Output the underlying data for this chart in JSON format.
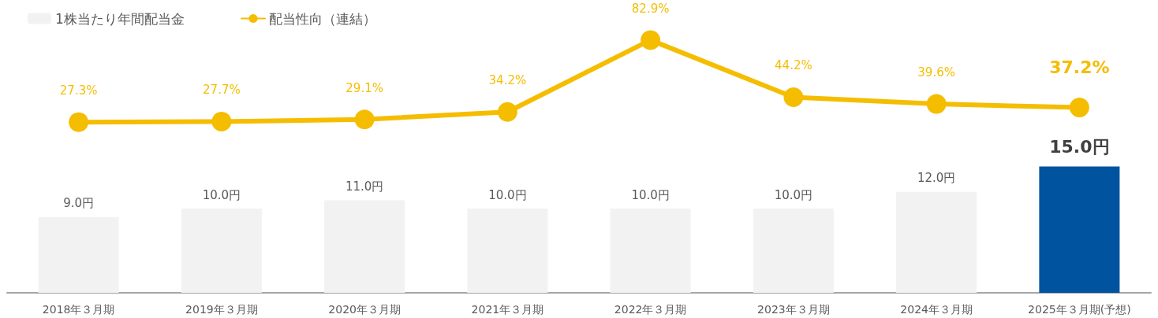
{
  "chart_data": [
    {
      "type": "bar",
      "categories": [
        "2018年３月期",
        "2019年３月期",
        "2020年３月期",
        "2021年３月期",
        "2022年３月期",
        "2023年３月期",
        "2024年３月期",
        "2025年３月期(予想)"
      ],
      "series": [
        {
          "name": "1株当たり年間配当金",
          "color": "#f2f2f2",
          "colors": [
            "#f2f2f2",
            "#f2f2f2",
            "#f2f2f2",
            "#f2f2f2",
            "#f2f2f2",
            "#f2f2f2",
            "#f2f2f2",
            "#00539f"
          ],
          "values": [
            9.0,
            10.0,
            11.0,
            10.0,
            10.0,
            10.0,
            12.0,
            15.0
          ],
          "value_labels": [
            "9.0円",
            "10.0円",
            "11.0円",
            "10.0円",
            "10.0円",
            "10.0円",
            "12.0円",
            "15.0円"
          ]
        }
      ],
      "legend": "top left",
      "grid": false
    },
    {
      "type": "line",
      "categories": [
        null,
        null,
        null,
        null,
        null,
        null,
        null,
        null
      ],
      "series": [
        {
          "name": "配当性向（連結）",
          "color": "#f5bd00",
          "values": [
            27.3,
            27.7,
            29.1,
            34.2,
            82.9,
            44.2,
            39.6,
            37.2
          ],
          "value_labels": [
            "27.3%",
            "27.7%",
            "29.1%",
            "34.2%",
            "82.9%",
            "44.2%",
            "39.6%",
            "37.2%"
          ]
        }
      ],
      "tick_labels": false,
      "legend": "top left",
      "grid": false,
      "marker": "circle",
      "line_style": "solid"
    }
  ]
}
